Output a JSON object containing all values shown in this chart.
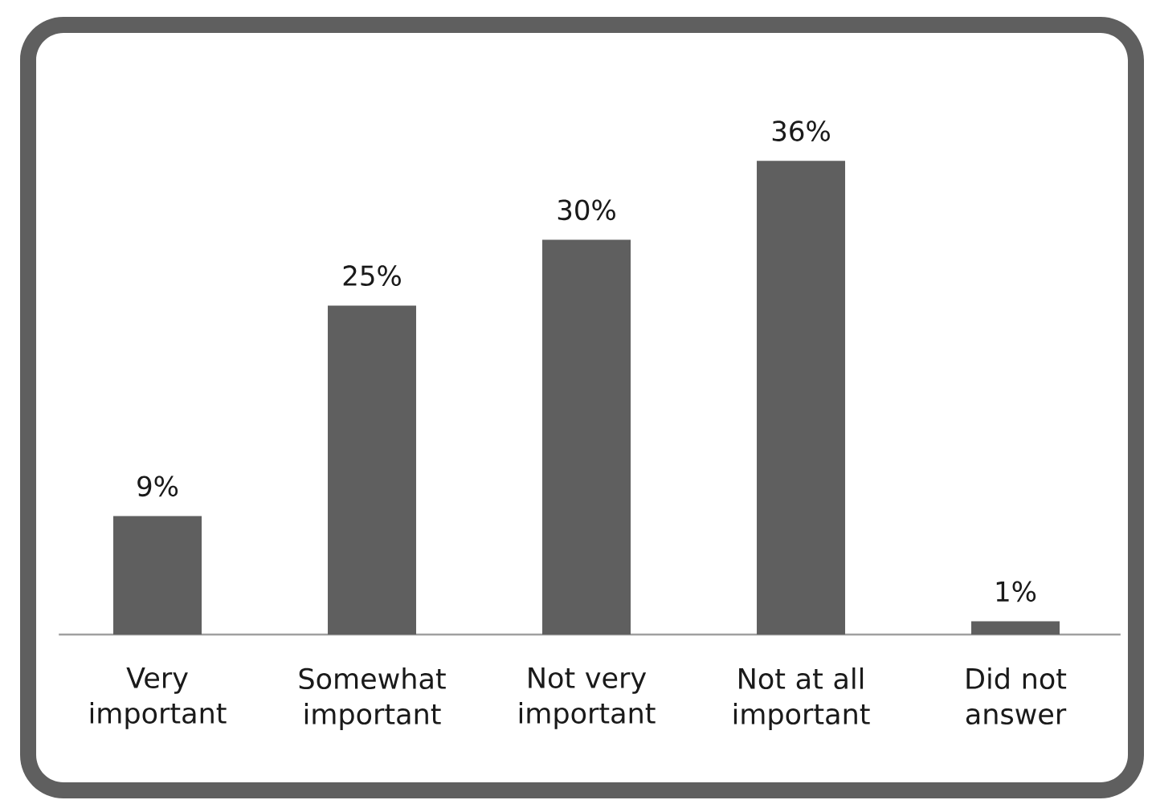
{
  "chart_data": {
    "type": "bar",
    "categories": [
      "Very important",
      "Somewhat important",
      "Not very important",
      "Not at all important",
      "Did not answer"
    ],
    "values": [
      9,
      25,
      30,
      36,
      1
    ],
    "value_labels": [
      "9%",
      "25%",
      "30%",
      "36%",
      "1%"
    ],
    "color": "#5f5f5f"
  }
}
